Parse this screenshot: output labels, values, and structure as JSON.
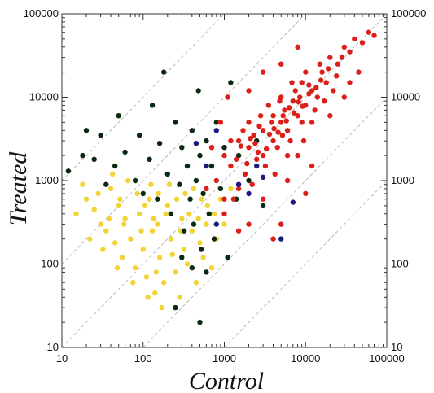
{
  "chart_data": {
    "type": "scatter",
    "xscale": "log",
    "yscale": "log",
    "xlim": [
      10,
      100000
    ],
    "ylim": [
      10,
      100000
    ],
    "xlabel": "Control",
    "ylabel": "Treated",
    "grid": false,
    "reference_lines": "dashed diagonal lines",
    "x_tick_labels": [
      "10",
      "100",
      "1000",
      "10000",
      "100000"
    ],
    "y_tick_labels": [
      "10",
      "100",
      "1000",
      "10000",
      "100000"
    ],
    "series": [
      {
        "color": "#f2d437",
        "points": [
          [
            20,
            600
          ],
          [
            25,
            450
          ],
          [
            30,
            300
          ],
          [
            35,
            250
          ],
          [
            40,
            800
          ],
          [
            45,
            180
          ],
          [
            50,
            500
          ],
          [
            55,
            120
          ],
          [
            60,
            350
          ],
          [
            70,
            200
          ],
          [
            80,
            90
          ],
          [
            90,
            400
          ],
          [
            100,
            150
          ],
          [
            110,
            70
          ],
          [
            120,
            600
          ],
          [
            130,
            250
          ],
          [
            140,
            45
          ],
          [
            150,
            300
          ],
          [
            160,
            120
          ],
          [
            180,
            60
          ],
          [
            200,
            500
          ],
          [
            220,
            200
          ],
          [
            250,
            80
          ],
          [
            280,
            40
          ],
          [
            300,
            350
          ],
          [
            320,
            150
          ],
          [
            350,
            100
          ],
          [
            400,
            250
          ],
          [
            450,
            60
          ],
          [
            500,
            180
          ],
          [
            550,
            120
          ],
          [
            600,
            300
          ],
          [
            700,
            90
          ],
          [
            800,
            200
          ],
          [
            15,
            400
          ],
          [
            18,
            900
          ],
          [
            22,
            200
          ],
          [
            28,
            700
          ],
          [
            32,
            150
          ],
          [
            38,
            350
          ],
          [
            42,
            1200
          ],
          [
            48,
            90
          ],
          [
            52,
            600
          ],
          [
            58,
            300
          ],
          [
            65,
            1000
          ],
          [
            75,
            60
          ],
          [
            85,
            700
          ],
          [
            95,
            250
          ],
          [
            105,
            500
          ],
          [
            115,
            40
          ],
          [
            125,
            900
          ],
          [
            135,
            350
          ],
          [
            145,
            80
          ],
          [
            155,
            700
          ],
          [
            170,
            30
          ],
          [
            190,
            400
          ],
          [
            210,
            900
          ],
          [
            230,
            130
          ],
          [
            260,
            600
          ],
          [
            290,
            250
          ],
          [
            330,
            700
          ],
          [
            370,
            400
          ],
          [
            420,
            800
          ],
          [
            480,
            350
          ],
          [
            530,
            600
          ],
          [
            620,
            500
          ],
          [
            750,
            400
          ],
          [
            900,
            600
          ],
          [
            1000,
            300
          ],
          [
            1200,
            800
          ]
        ]
      },
      {
        "color": "#0a2a10",
        "points": [
          [
            12,
            1300
          ],
          [
            18,
            2000
          ],
          [
            20,
            4000
          ],
          [
            25,
            1800
          ],
          [
            30,
            3500
          ],
          [
            35,
            900
          ],
          [
            45,
            1500
          ],
          [
            50,
            6000
          ],
          [
            60,
            2200
          ],
          [
            80,
            1000
          ],
          [
            90,
            3500
          ],
          [
            100,
            700
          ],
          [
            120,
            1800
          ],
          [
            130,
            8000
          ],
          [
            150,
            600
          ],
          [
            160,
            2800
          ],
          [
            180,
            20000
          ],
          [
            200,
            1200
          ],
          [
            220,
            400
          ],
          [
            250,
            5000
          ],
          [
            280,
            900
          ],
          [
            300,
            2500
          ],
          [
            320,
            250
          ],
          [
            350,
            1500
          ],
          [
            380,
            600
          ],
          [
            400,
            4000
          ],
          [
            420,
            300
          ],
          [
            450,
            1000
          ],
          [
            480,
            12000
          ],
          [
            500,
            2000
          ],
          [
            520,
            150
          ],
          [
            550,
            700
          ],
          [
            600,
            3000
          ],
          [
            650,
            400
          ],
          [
            700,
            1500
          ],
          [
            750,
            200
          ],
          [
            800,
            5000
          ],
          [
            900,
            800
          ],
          [
            1000,
            2500
          ],
          [
            1100,
            120
          ],
          [
            1200,
            15000
          ],
          [
            1400,
            600
          ],
          [
            1500,
            2000
          ],
          [
            2000,
            1000
          ],
          [
            2500,
            3000
          ],
          [
            3000,
            500
          ],
          [
            400,
            90
          ],
          [
            600,
            80
          ],
          [
            300,
            120
          ],
          [
            250,
            30
          ],
          [
            500,
            20
          ]
        ]
      },
      {
        "color": "#dd1f1a",
        "points": [
          [
            800,
            1000
          ],
          [
            1000,
            2000
          ],
          [
            1200,
            1500
          ],
          [
            1500,
            3000
          ],
          [
            1500,
            800
          ],
          [
            2000,
            2500
          ],
          [
            2000,
            5000
          ],
          [
            2500,
            1800
          ],
          [
            3000,
            4000
          ],
          [
            3000,
            2000
          ],
          [
            3500,
            8000
          ],
          [
            4000,
            3000
          ],
          [
            4000,
            6000
          ],
          [
            5000,
            5000
          ],
          [
            5000,
            10000
          ],
          [
            6000,
            4000
          ],
          [
            7000,
            9000
          ],
          [
            8000,
            6000
          ],
          [
            9000,
            15000
          ],
          [
            10000,
            8000
          ],
          [
            10000,
            20000
          ],
          [
            12000,
            12000
          ],
          [
            15000,
            25000
          ],
          [
            18000,
            15000
          ],
          [
            20000,
            30000
          ],
          [
            25000,
            25000
          ],
          [
            30000,
            40000
          ],
          [
            35000,
            35000
          ],
          [
            40000,
            50000
          ],
          [
            50000,
            45000
          ],
          [
            60000,
            60000
          ],
          [
            70000,
            55000
          ],
          [
            1000,
            600
          ],
          [
            1200,
            3000
          ],
          [
            1800,
            1200
          ],
          [
            2200,
            900
          ],
          [
            2800,
            6000
          ],
          [
            3200,
            1500
          ],
          [
            4500,
            2500
          ],
          [
            5500,
            7000
          ],
          [
            6500,
            3000
          ],
          [
            7500,
            12000
          ],
          [
            9000,
            5000
          ],
          [
            11000,
            14000
          ],
          [
            13000,
            7000
          ],
          [
            16000,
            20000
          ],
          [
            22000,
            12000
          ],
          [
            28000,
            30000
          ],
          [
            3000,
            20000
          ],
          [
            2000,
            12000
          ],
          [
            5000,
            25000
          ],
          [
            8000,
            40000
          ],
          [
            600,
            800
          ],
          [
            700,
            2500
          ],
          [
            900,
            5000
          ],
          [
            1100,
            10000
          ],
          [
            1300,
            600
          ],
          [
            1700,
            4000
          ],
          [
            2300,
            3500
          ],
          [
            2600,
            2200
          ],
          [
            3800,
            5000
          ],
          [
            4200,
            1200
          ],
          [
            4800,
            9000
          ],
          [
            5200,
            3500
          ],
          [
            6000,
            2000
          ],
          [
            6800,
            15000
          ],
          [
            8500,
            10000
          ],
          [
            9500,
            3000
          ],
          [
            12000,
            5000
          ],
          [
            14000,
            10000
          ],
          [
            17000,
            9000
          ],
          [
            20000,
            6000
          ],
          [
            24000,
            18000
          ],
          [
            30000,
            10000
          ],
          [
            35000,
            15000
          ],
          [
            45000,
            20000
          ],
          [
            1400,
            1800
          ],
          [
            1600,
            2600
          ],
          [
            1900,
            1600
          ],
          [
            2100,
            3200
          ],
          [
            2400,
            2800
          ],
          [
            2700,
            4500
          ],
          [
            3300,
            2400
          ],
          [
            3600,
            3600
          ],
          [
            4100,
            4200
          ],
          [
            4600,
            3800
          ],
          [
            5300,
            6000
          ],
          [
            5800,
            5200
          ],
          [
            6300,
            7500
          ],
          [
            7200,
            6500
          ],
          [
            8200,
            8800
          ],
          [
            9200,
            7800
          ],
          [
            11000,
            11000
          ],
          [
            13500,
            13000
          ],
          [
            15500,
            16000
          ],
          [
            19000,
            22000
          ],
          [
            1000,
            400
          ],
          [
            2000,
            300
          ],
          [
            3000,
            600
          ],
          [
            1500,
            250
          ],
          [
            4000,
            200
          ],
          [
            6000,
            1000
          ],
          [
            8000,
            2000
          ],
          [
            10000,
            700
          ],
          [
            12000,
            1500
          ],
          [
            5000,
            300
          ]
        ]
      },
      {
        "color": "#1a1a80",
        "points": [
          [
            450,
            2800
          ],
          [
            600,
            1500
          ],
          [
            800,
            300
          ],
          [
            1500,
            900
          ],
          [
            2000,
            700
          ],
          [
            3000,
            1100
          ],
          [
            5000,
            200
          ],
          [
            7000,
            550
          ],
          [
            800,
            4000
          ],
          [
            2500,
            1500
          ]
        ]
      }
    ]
  }
}
